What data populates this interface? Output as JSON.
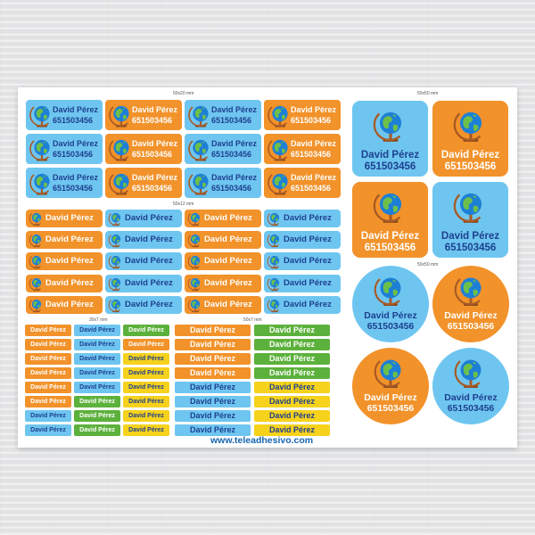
{
  "brand": {
    "website": "www.teleadhesivo.com"
  },
  "sections": {
    "s50x20": "50x20 mm",
    "s50x50_top": "50x50 mm",
    "s50x12": "50x12 mm",
    "s50x50_round": "50x50 mm",
    "s30x7": "30x7 mm",
    "s50x7": "50x7 mm"
  },
  "sticker": {
    "name": "David Pérez",
    "phone": "651503456"
  },
  "colors": {
    "blue": "#6ec6f0",
    "orange": "#f2922a",
    "green": "#5cb13c",
    "yellow": "#f6d21c",
    "navy_text": "#1e3f8f"
  },
  "icon": "globe-icon"
}
